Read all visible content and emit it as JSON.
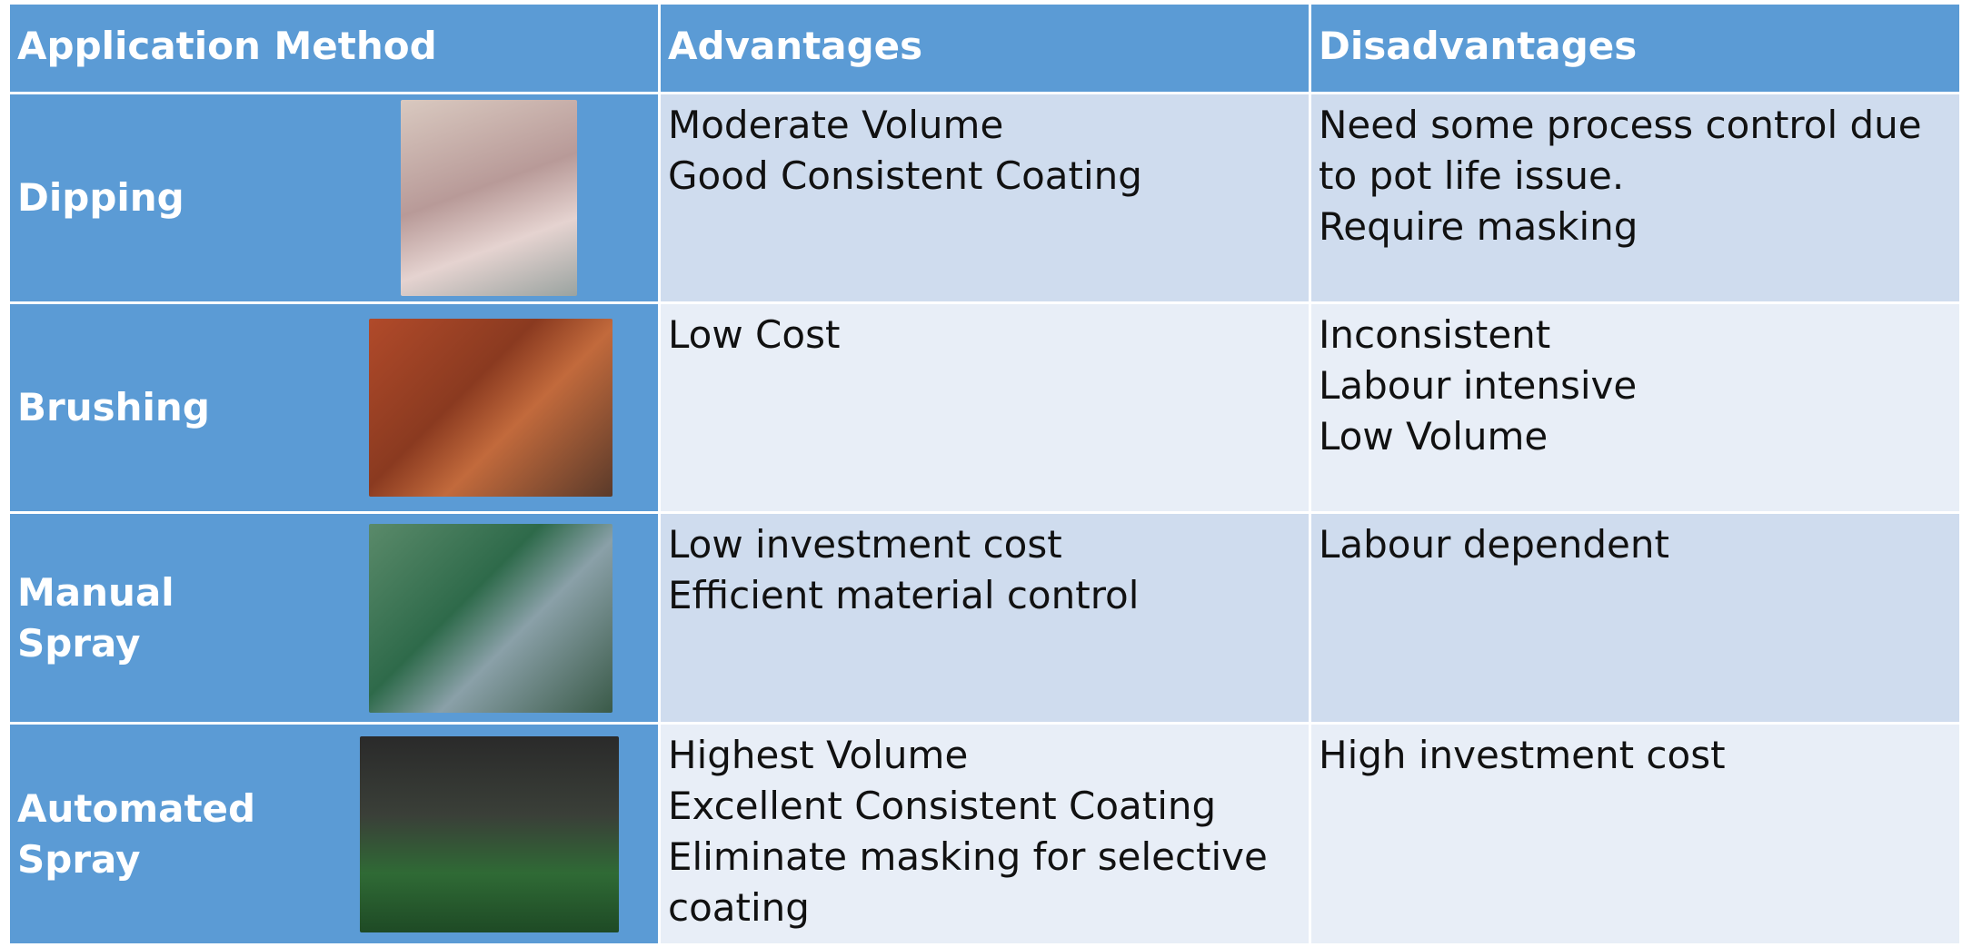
{
  "table": {
    "header": [
      "Application Method",
      "Advantages",
      "Disadvantages"
    ],
    "rows": [
      {
        "method": "Dipping",
        "advantages": [
          "Moderate Volume",
          "Good Consistent Coating"
        ],
        "disadvantages": [
          "Need some process control due to pot life issue.",
          "Require masking"
        ]
      },
      {
        "method": "Brushing",
        "advantages": [
          "Low Cost"
        ],
        "disadvantages": [
          "Inconsistent",
          "Labour intensive",
          "Low Volume"
        ]
      },
      {
        "method": "Manual Spray",
        "advantages": [
          "Low investment cost",
          "Efficient material control"
        ],
        "disadvantages": [
          "Labour dependent"
        ]
      },
      {
        "method": "Automated Spray",
        "advantages": [
          "Highest Volume",
          "Excellent Consistent Coating",
          "Eliminate masking for selective coating"
        ],
        "disadvantages": [
          "High investment cost"
        ]
      }
    ]
  }
}
